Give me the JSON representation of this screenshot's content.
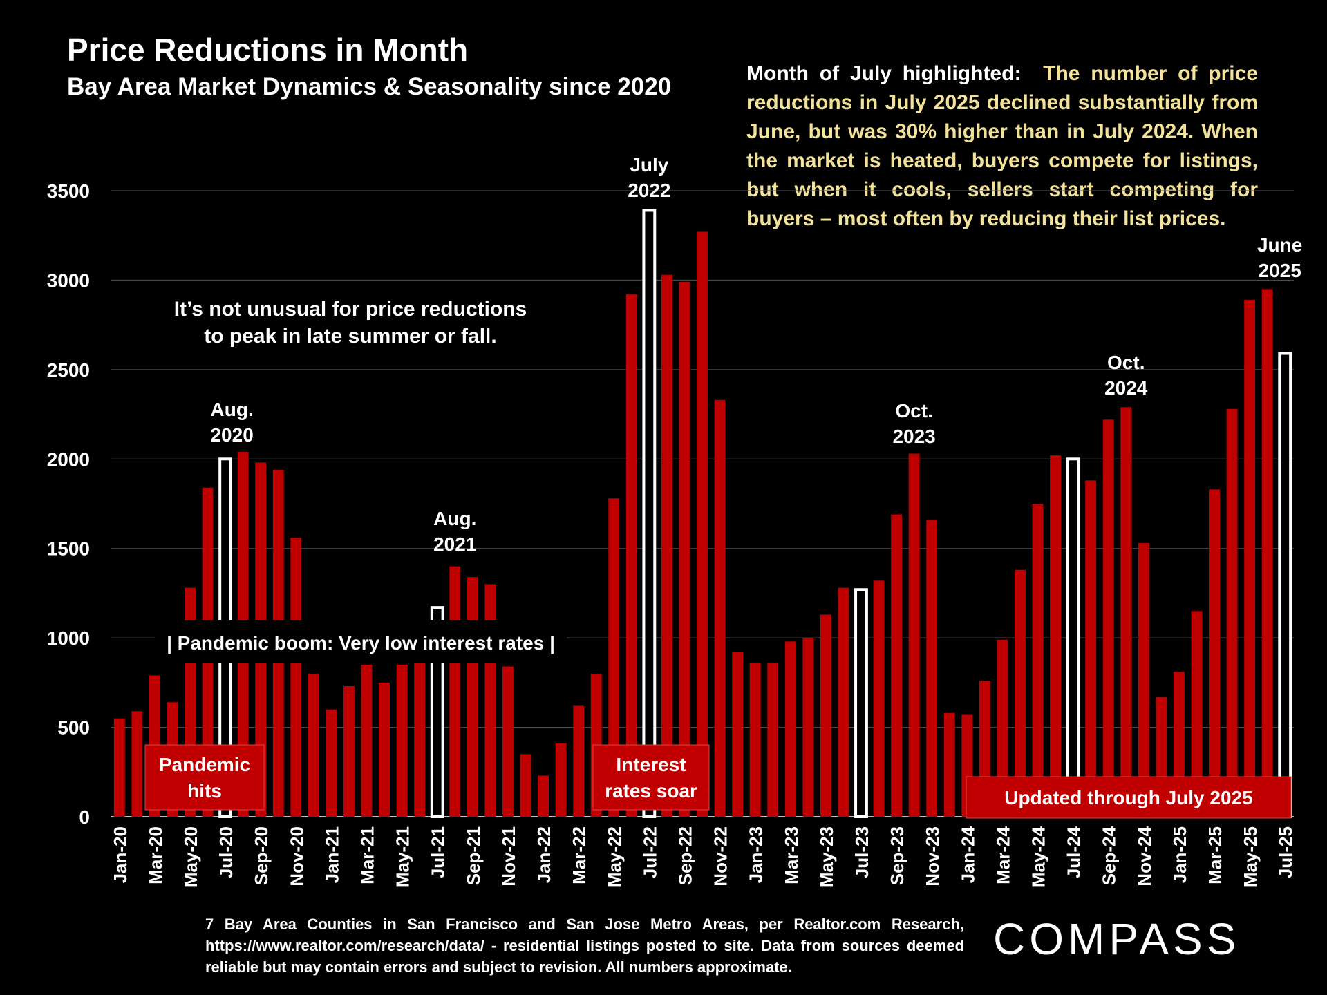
{
  "title": "Price Reductions in Month",
  "subtitle": "Bay Area Market Dynamics & Seasonality since 2020",
  "callout": {
    "lead": "Month of July highlighted:",
    "body": "The number of price reductions in July 2025 declined substantially from June, but was 30% higher than in July 2024. When the market is heated, buyers compete for listings, but when it cools, sellers start competing for buyers – most often by reducing their list prices."
  },
  "annotations": {
    "peak_note": [
      "It’s not unusual for price reductions",
      "to peak in late summer or fall."
    ],
    "pandemic_boom": "| Pandemic boom: Very low interest rates |",
    "aug2020": [
      "Aug.",
      "2020"
    ],
    "aug2021": [
      "Aug.",
      "2021"
    ],
    "july2022": [
      "July",
      "2022"
    ],
    "oct2023": [
      "Oct.",
      "2023"
    ],
    "oct2024": [
      "Oct.",
      "2024"
    ],
    "june2025": [
      "June",
      "2025"
    ],
    "pandemic_hits": [
      "Pandemic",
      "hits"
    ],
    "rates_soar": [
      "Interest",
      "rates soar"
    ],
    "updated": "Updated through July 2025"
  },
  "footnote": "7 Bay Area Counties in San Francisco and San Jose Metro Areas, per Realtor.com Research, https://www.realtor.com/research/data/ - residential listings posted to site. Data from sources deemed reliable but may contain errors and subject to revision. All numbers approximate.",
  "logo": "COMPASS",
  "colors": {
    "bar": "#c00000",
    "highlight_fill": "#000000",
    "highlight_stroke": "#ffffff",
    "label_box": "#c00000",
    "callout_text": "#f2e29a"
  },
  "chart_data": {
    "type": "bar",
    "title": "Price Reductions in Month",
    "ylim": [
      0,
      3500
    ],
    "yticks": [
      0,
      500,
      1000,
      1500,
      2000,
      2500,
      3000,
      3500
    ],
    "grid": true,
    "highlight_month": "Jul",
    "categories": [
      "Jan-20",
      "Feb-20",
      "Mar-20",
      "Apr-20",
      "May-20",
      "Jun-20",
      "Jul-20",
      "Aug-20",
      "Sep-20",
      "Oct-20",
      "Nov-20",
      "Dec-20",
      "Jan-21",
      "Feb-21",
      "Mar-21",
      "Apr-21",
      "May-21",
      "Jun-21",
      "Jul-21",
      "Aug-21",
      "Sep-21",
      "Oct-21",
      "Nov-21",
      "Dec-21",
      "Jan-22",
      "Feb-22",
      "Mar-22",
      "Apr-22",
      "May-22",
      "Jun-22",
      "Jul-22",
      "Aug-22",
      "Sep-22",
      "Oct-22",
      "Nov-22",
      "Dec-22",
      "Jan-23",
      "Feb-23",
      "Mar-23",
      "Apr-23",
      "May-23",
      "Jun-23",
      "Jul-23",
      "Aug-23",
      "Sep-23",
      "Oct-23",
      "Nov-23",
      "Dec-23",
      "Jan-24",
      "Feb-24",
      "Mar-24",
      "Apr-24",
      "May-24",
      "Jun-24",
      "Jul-24",
      "Aug-24",
      "Sep-24",
      "Oct-24",
      "Nov-24",
      "Dec-24",
      "Jan-25",
      "Feb-25",
      "Mar-25",
      "Apr-25",
      "May-25",
      "Jun-25",
      "Jul-25"
    ],
    "tick_labels": [
      "Jan-20",
      "Mar-20",
      "May-20",
      "Jul-20",
      "Sep-20",
      "Nov-20",
      "Jan-21",
      "Mar-21",
      "May-21",
      "Jul-21",
      "Sep-21",
      "Nov-21",
      "Jan-22",
      "Mar-22",
      "May-22",
      "Jul-22",
      "Sep-22",
      "Nov-22",
      "Jan-23",
      "Mar-23",
      "May-23",
      "Jul-23",
      "Sep-23",
      "Nov-23",
      "Jan-24",
      "Mar-24",
      "May-24",
      "Jul-24",
      "Sep-24",
      "Nov-24",
      "Jan-25",
      "Mar-25",
      "May-25",
      "Jul-25"
    ],
    "values": [
      550,
      590,
      790,
      640,
      1280,
      1840,
      2000,
      2040,
      1980,
      1940,
      1560,
      800,
      600,
      730,
      850,
      750,
      850,
      860,
      1170,
      1400,
      1340,
      1300,
      840,
      350,
      230,
      410,
      620,
      800,
      1780,
      2920,
      3390,
      3030,
      2990,
      3270,
      2330,
      920,
      860,
      860,
      980,
      1000,
      1130,
      1280,
      1270,
      1320,
      1690,
      2030,
      1660,
      580,
      570,
      760,
      990,
      1380,
      1750,
      2020,
      2000,
      1880,
      2220,
      2290,
      1530,
      670,
      810,
      1150,
      1830,
      2280,
      2890,
      2950,
      2590
    ]
  }
}
